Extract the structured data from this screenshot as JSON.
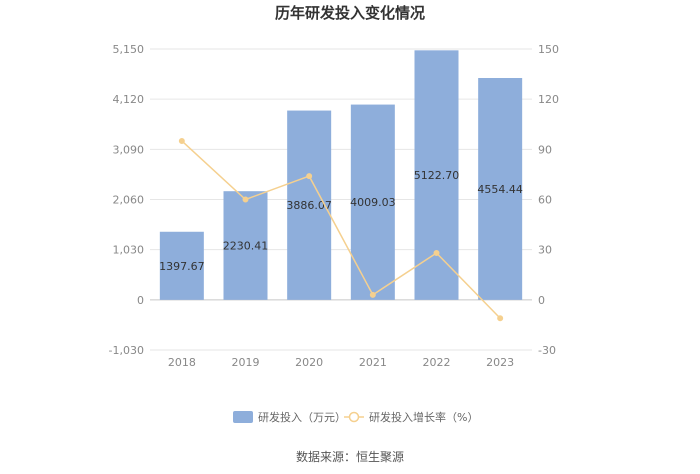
{
  "chart_data": {
    "type": "bar+line",
    "title": "历年研发投入变化情况",
    "categories": [
      "2018",
      "2019",
      "2020",
      "2021",
      "2022",
      "2023"
    ],
    "series": [
      {
        "name": "研发投入（万元）",
        "type": "bar",
        "axis": "left",
        "color": "#8eaedb",
        "values": [
          1397.67,
          2230.41,
          3886.07,
          4009.03,
          5122.7,
          4554.44
        ],
        "labels": [
          "1397.67",
          "2230.41",
          "3886.07",
          "4009.03",
          "5122.70",
          "4554.44"
        ]
      },
      {
        "name": "研发投入增长率（%）",
        "type": "line",
        "axis": "right",
        "color": "#f5d08f",
        "values": [
          95,
          60,
          74,
          3,
          28,
          -11
        ]
      }
    ],
    "left_axis": {
      "min": -1030,
      "max": 5150,
      "ticks": [
        "-1,030",
        "0",
        "1,030",
        "2,060",
        "3,090",
        "4,120",
        "5,150"
      ]
    },
    "right_axis": {
      "min": -30,
      "max": 150,
      "ticks": [
        "-30",
        "0",
        "30",
        "60",
        "90",
        "120",
        "150"
      ]
    },
    "grid": true,
    "legend_position": "bottom"
  },
  "source": "数据来源：恒生聚源"
}
